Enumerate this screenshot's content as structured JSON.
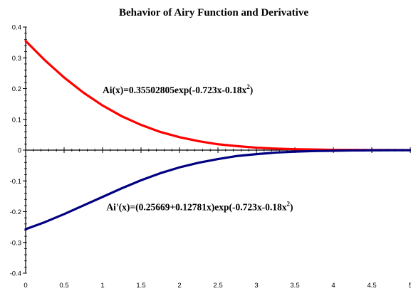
{
  "chart_data": {
    "type": "line",
    "title": "Behavior of Airy Function and Derivative",
    "xlabel": "",
    "ylabel": "",
    "xlim": [
      0,
      5
    ],
    "ylim": [
      -0.4,
      0.4
    ],
    "grid": false,
    "legend": "none",
    "x_ticks": [
      "0",
      "0.5",
      "1",
      "1.5",
      "2",
      "2.5",
      "3",
      "3.5",
      "4",
      "4.5",
      "5"
    ],
    "y_ticks": [
      "0.4",
      "0.3",
      "0.2",
      "0.1",
      "0",
      "-0.1",
      "-0.2",
      "-0.3",
      "-0.4"
    ],
    "x": [
      0,
      0.25,
      0.5,
      0.75,
      1,
      1.25,
      1.5,
      1.75,
      2,
      2.25,
      2.5,
      2.75,
      3,
      3.25,
      3.5,
      3.75,
      4,
      4.25,
      4.5,
      4.75,
      5
    ],
    "series": [
      {
        "color": "#ff0000",
        "values": [
          0.355,
          0.292,
          0.236,
          0.187,
          0.145,
          0.11,
          0.082,
          0.059,
          0.042,
          0.029,
          0.019,
          0.013,
          0.008,
          0.005,
          0.003,
          0.002,
          0.001,
          0.0006,
          0.0003,
          0.0002,
          0.0001
        ]
      },
      {
        "color": "#000080",
        "values": [
          -0.257,
          -0.234,
          -0.208,
          -0.18,
          -0.152,
          -0.124,
          -0.098,
          -0.075,
          -0.056,
          -0.041,
          -0.029,
          -0.019,
          -0.013,
          -0.008,
          -0.005,
          -0.003,
          -0.002,
          -0.001,
          -0.0006,
          -0.0003,
          -0.0002
        ]
      }
    ],
    "annotations": [
      {
        "text": "Ai(x)=0.35502805exp(-0.723x-0.18x",
        "sup": "2",
        "tail": ")",
        "x": 1.0,
        "y": 0.185
      },
      {
        "text": "Ai'(x)=(0.25669+0.12781x)exp(-0.723x-0.18x",
        "sup": "2",
        "tail": ")",
        "x": 1.05,
        "y": -0.195
      }
    ]
  }
}
